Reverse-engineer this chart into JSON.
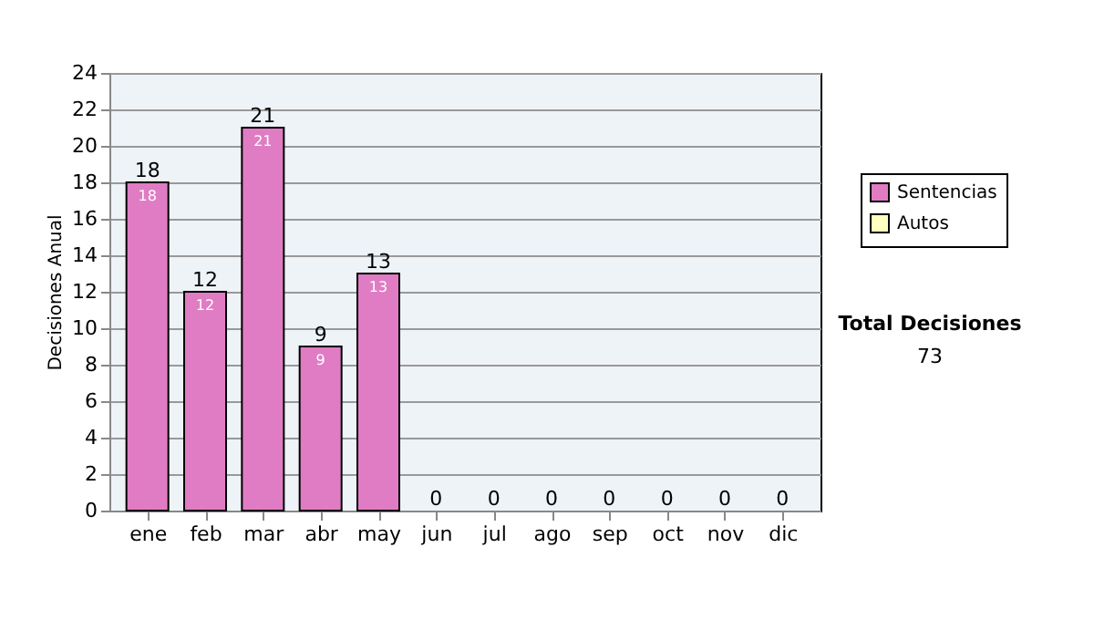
{
  "chart_data": {
    "type": "bar",
    "ylabel": "Decisiones Anual",
    "categories": [
      "ene",
      "feb",
      "mar",
      "abr",
      "may",
      "jun",
      "jul",
      "ago",
      "sep",
      "oct",
      "nov",
      "dic"
    ],
    "series": [
      {
        "name": "Sentencias",
        "color": "#e07cc4",
        "values": [
          18,
          12,
          21,
          9,
          13,
          0,
          0,
          0,
          0,
          0,
          0,
          0
        ],
        "value_labels": [
          "18",
          "12",
          "21",
          "9",
          "13",
          null,
          null,
          null,
          null,
          null,
          null,
          null
        ]
      },
      {
        "name": "Autos",
        "color": "#ffffc0",
        "values": [
          0,
          0,
          0,
          0,
          0,
          0,
          0,
          0,
          0,
          0,
          0,
          0
        ]
      }
    ],
    "totals": [
      "18",
      "12",
      "21",
      "9",
      "13",
      "0",
      "0",
      "0",
      "0",
      "0",
      "0",
      "0"
    ],
    "ylim": [
      0,
      24
    ],
    "yticks": [
      0,
      2,
      4,
      6,
      8,
      10,
      12,
      14,
      16,
      18,
      20,
      22,
      24
    ],
    "grid": "y",
    "legend": "right",
    "annotations": [
      "Total Decisiones",
      "73"
    ]
  }
}
